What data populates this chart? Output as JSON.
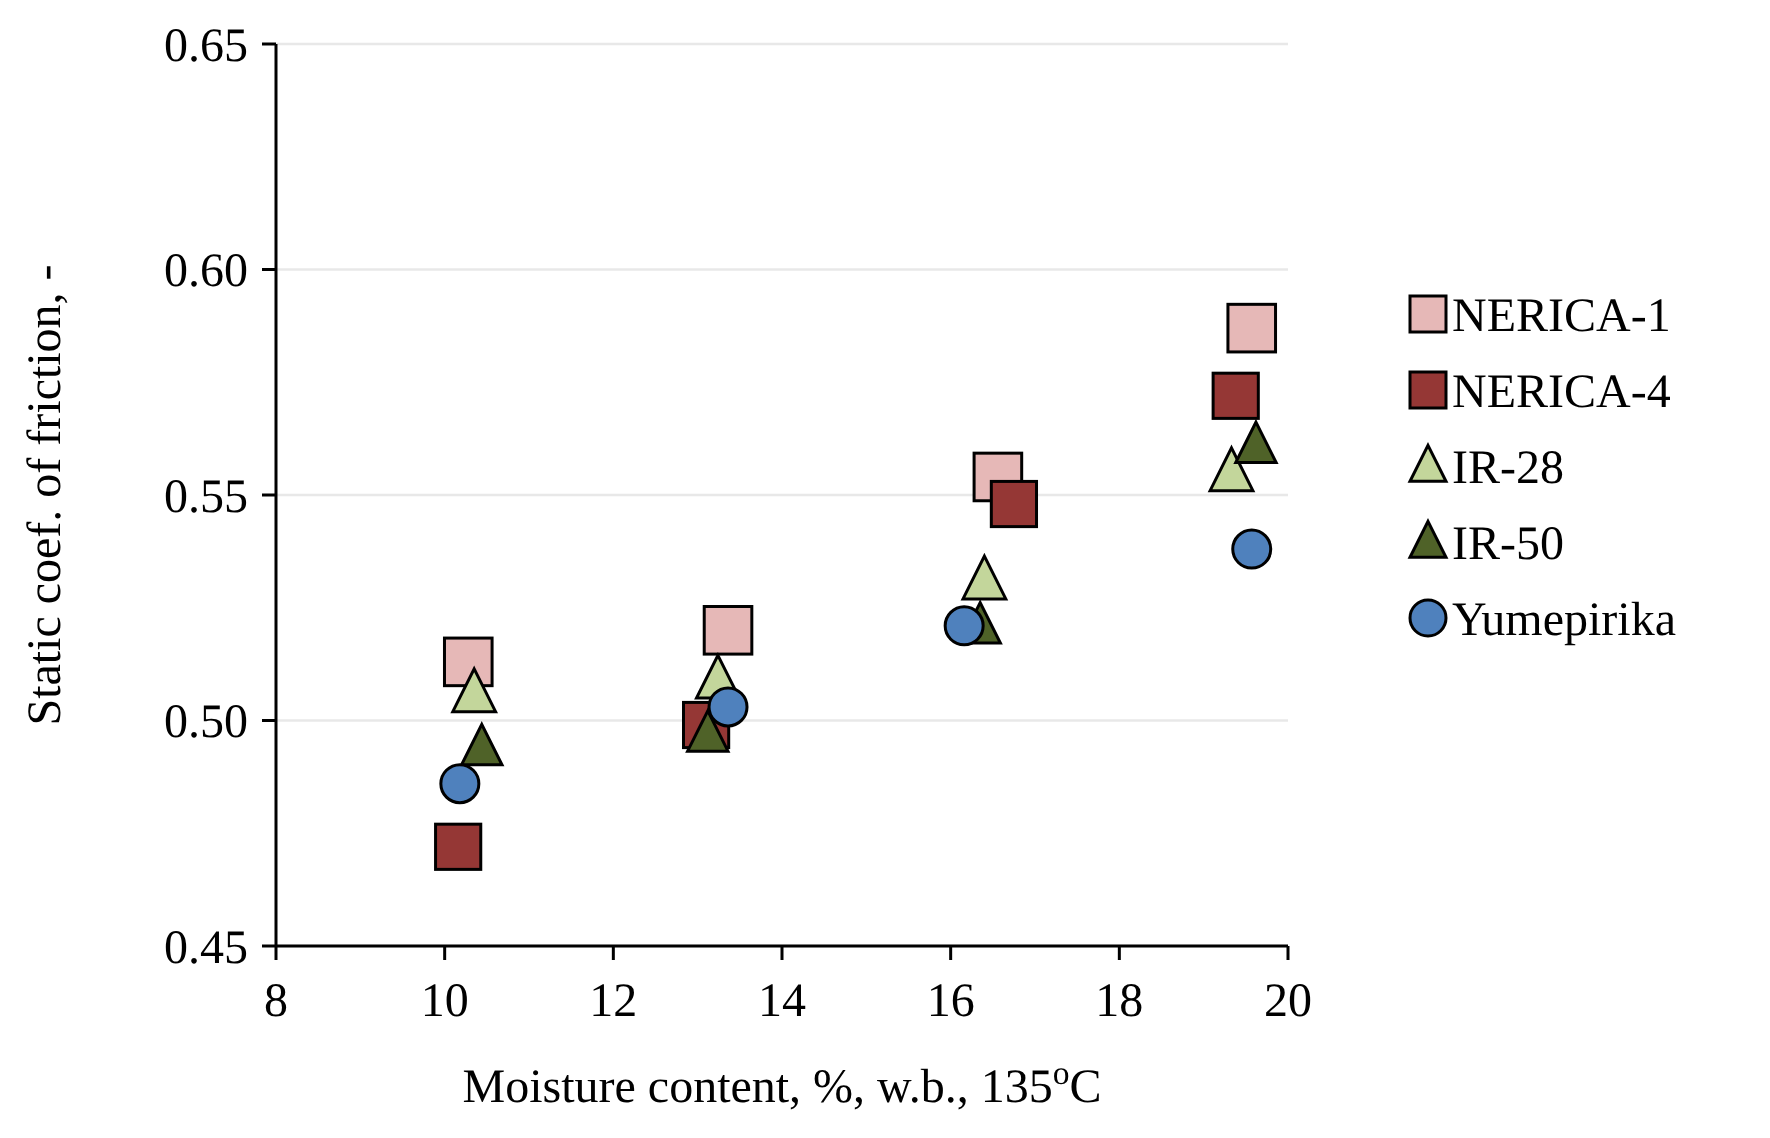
{
  "chart_data": {
    "type": "scatter",
    "xlabel": "Moisture content, %, w.b., 135$^{o}$C",
    "ylabel": "Static coef. of friction, -",
    "xlim": [
      8,
      20
    ],
    "xticks": [
      8,
      10,
      12,
      14,
      16,
      18,
      20
    ],
    "ylim": [
      0.45,
      0.65
    ],
    "yticks": [
      {
        "value": 0.45,
        "label": "0.45"
      },
      {
        "value": 0.5,
        "label": "0.50"
      },
      {
        "value": 0.55,
        "label": "0.55"
      },
      {
        "value": 0.6,
        "label": "0.60"
      },
      {
        "value": 0.65,
        "label": "0.65"
      }
    ],
    "grid": "y",
    "legend": "right",
    "series": [
      {
        "name": "NERICA-1",
        "color": "#e6b8b7",
        "marker": "square",
        "x": [
          10.28,
          13.36,
          16.56,
          19.57
        ],
        "values": [
          0.513,
          0.52,
          0.554,
          0.587
        ]
      },
      {
        "name": "NERICA-4",
        "color": "#953735",
        "marker": "square",
        "x": [
          10.16,
          13.1,
          16.75,
          19.38
        ],
        "values": [
          0.472,
          0.499,
          0.548,
          0.572
        ]
      },
      {
        "name": "IR-28",
        "color": "#c3d69b",
        "marker": "triangle",
        "x": [
          10.35,
          13.24,
          16.4,
          19.33
        ],
        "values": [
          0.506,
          0.509,
          0.531,
          0.555
        ]
      },
      {
        "name": "IR-50",
        "color": "#4f6228",
        "marker": "triangle",
        "x": [
          10.44,
          13.12,
          16.35,
          19.62
        ],
        "values": [
          0.494,
          0.497,
          0.521,
          0.561
        ]
      },
      {
        "name": "Yumepirika",
        "color": "#4f81bd",
        "marker": "circle",
        "x": [
          10.18,
          13.36,
          16.16,
          19.57
        ],
        "values": [
          0.486,
          0.503,
          0.521,
          0.538
        ]
      }
    ]
  }
}
